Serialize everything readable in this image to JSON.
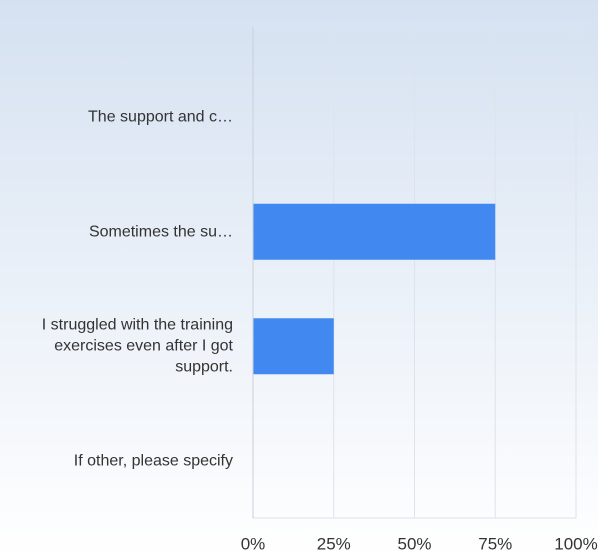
{
  "chart_data": {
    "type": "hbar",
    "categories": [
      "The support and c…",
      "Sometimes the su…",
      "I struggled with the training exercises even after I got support.",
      "If other, please specify"
    ],
    "values": [
      0,
      75,
      25,
      0
    ],
    "color": "#4189f0",
    "xlim": [
      0,
      100
    ],
    "xticks": [
      {
        "value": 0,
        "label": "0%"
      },
      {
        "value": 25,
        "label": "25%"
      },
      {
        "value": 50,
        "label": "50%"
      },
      {
        "value": 75,
        "label": "75%"
      },
      {
        "value": 100,
        "label": "100%"
      }
    ],
    "grid": true
  }
}
